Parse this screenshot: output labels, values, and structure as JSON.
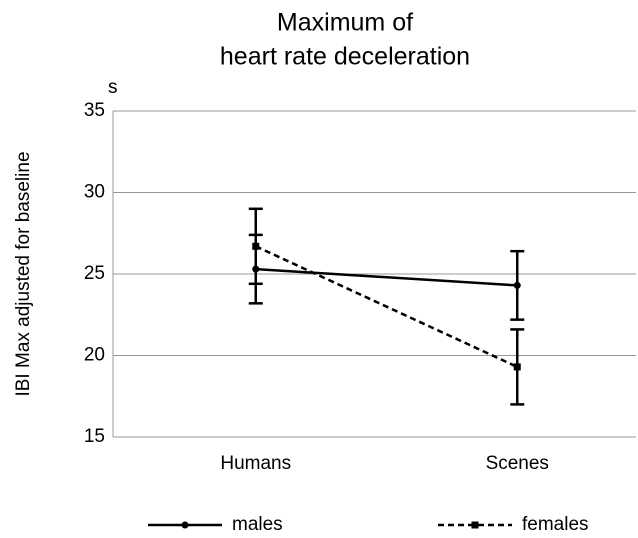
{
  "chart_data": {
    "type": "line",
    "title": [
      "Maximum of",
      "heart rate deceleration"
    ],
    "unit_label": "s",
    "y_label": "IBI Max adjusted for  baseline",
    "categories": [
      "Humans",
      "Scenes"
    ],
    "series": [
      {
        "name": "males",
        "color": "#000000",
        "linestyle": "solid",
        "marker": "circle",
        "values": [
          25.3,
          24.3
        ],
        "errors": [
          2.1,
          2.1
        ]
      },
      {
        "name": "females",
        "color": "#000000",
        "linestyle": "dashed",
        "marker": "square",
        "values": [
          26.7,
          19.3
        ],
        "errors": [
          2.3,
          2.3
        ]
      }
    ],
    "ylim": [
      15,
      35
    ],
    "yticks": [
      15,
      20,
      25,
      30,
      35
    ],
    "grid": true,
    "legend": "bottom"
  }
}
